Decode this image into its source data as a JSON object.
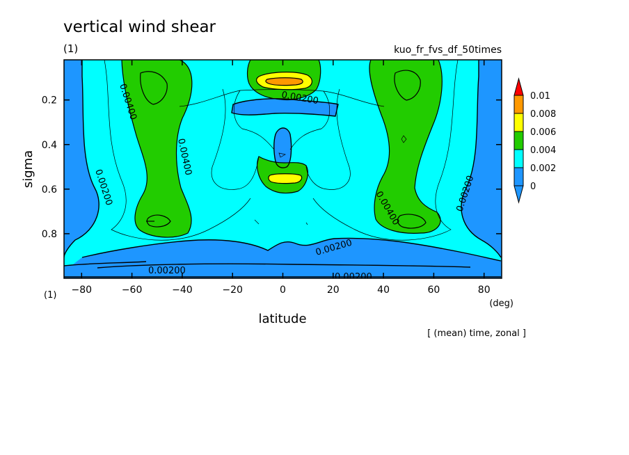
{
  "header": {
    "title": "vertical wind shear",
    "subtitle_left": "(1)",
    "subtitle_right": "kuo_fr_fvs_df_50times",
    "footer_note": "[ (mean) time, zonal ]",
    "corner_label": "(1)"
  },
  "colors": {
    "level0": "#1e96ff",
    "level1": "#00ffff",
    "level2": "#22cc00",
    "level3": "#ffff00",
    "level4": "#ff9900",
    "level5": "#ff0000"
  },
  "chart_data": {
    "type": "heatmap",
    "title": "vertical wind shear",
    "xlabel": "latitude",
    "ylabel": "sigma",
    "x_unit": "(deg)",
    "xlim": [
      -87,
      87
    ],
    "ylim": [
      1.0,
      0.02
    ],
    "xticks": [
      -80,
      -60,
      -40,
      -20,
      0,
      20,
      40,
      60,
      80
    ],
    "yticks": [
      0.2,
      0.4,
      0.6,
      0.8
    ],
    "xtick_labels": [
      "−80",
      "−60",
      "−40",
      "−20",
      "0",
      "20",
      "40",
      "60",
      "80"
    ],
    "ytick_labels": [
      "0.2",
      "0.4",
      "0.6",
      "0.8"
    ],
    "colorbar": {
      "levels": [
        0,
        0.002,
        0.004,
        0.006,
        0.008,
        0.01
      ],
      "labels": [
        "0",
        "0.002",
        "0.004",
        "0.006",
        "0.008",
        "0.01"
      ]
    },
    "contour_labels": [
      {
        "text": "0.00400",
        "lat": -67,
        "sigma": 0.17
      },
      {
        "text": "0.00400",
        "lat": -45,
        "sigma": 0.42
      },
      {
        "text": "0.00200",
        "lat": -77,
        "sigma": 0.63
      },
      {
        "text": "0.00200",
        "lat": 16,
        "sigma": 0.22
      },
      {
        "text": "0.00400",
        "lat": 42,
        "sigma": 0.69
      },
      {
        "text": "0.00200",
        "lat": 77,
        "sigma": 0.62
      },
      {
        "text": "0.00200",
        "lat": 26,
        "sigma": 0.85
      },
      {
        "text": "0.00200",
        "lat": -50,
        "sigma": 0.955
      },
      {
        "text": "0.00200",
        "lat": 30,
        "sigma": 0.99
      }
    ]
  }
}
